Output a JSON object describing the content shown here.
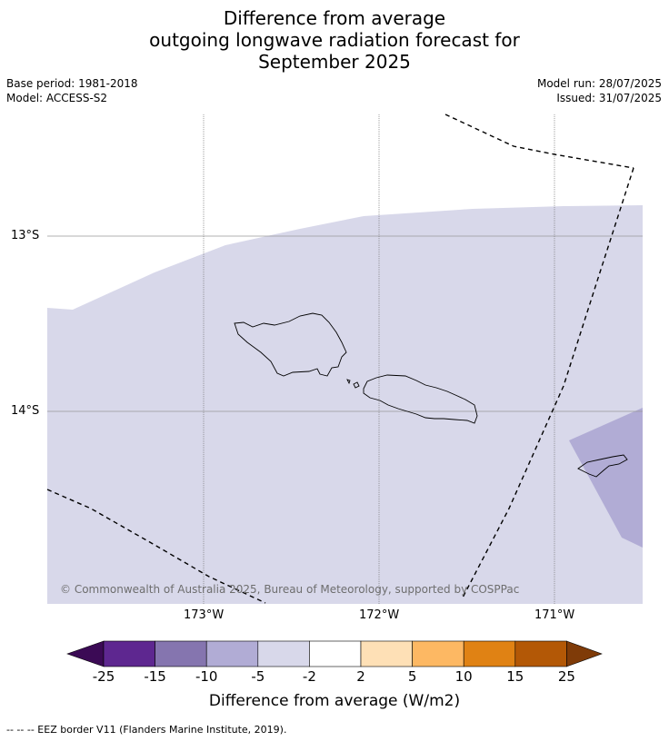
{
  "title": {
    "line1": "Difference from average",
    "line2": "outgoing longwave radiation forecast for",
    "line3": "September 2025"
  },
  "meta_left": {
    "base_period": "Base period: 1981-2018",
    "model": "Model: ACCESS-S2"
  },
  "meta_right": {
    "model_run": "Model run: 28/07/2025",
    "issued": "Issued: 31/07/2025"
  },
  "map": {
    "lat_labels": [
      "13°S",
      "14°S"
    ],
    "lon_labels": [
      "173°W",
      "172°W",
      "171°W"
    ],
    "copyright": "© Commonwealth of Australia 2025, Bureau of Meteorology, supported by COSPPac",
    "colors": {
      "dominant_fill": "#d8d8ea",
      "southeast_fill": "#b1acd5",
      "land_outline": "#000000",
      "eez_border": "#000000"
    }
  },
  "colorbar": {
    "ticks": [
      "-25",
      "-15",
      "-10",
      "-5",
      "-2",
      "2",
      "5",
      "10",
      "15",
      "25"
    ],
    "colors": [
      "#3b0a55",
      "#5e2790",
      "#8575af",
      "#b1acd5",
      "#d8d8ea",
      "#ffffff",
      "#fee0b6",
      "#fdb863",
      "#e08214",
      "#b35806",
      "#7f3b08"
    ],
    "title": "Difference from average (W/m2)"
  },
  "footnote": "--  --  -- EEZ border V11 (Flanders Marine Institute, 2019)."
}
